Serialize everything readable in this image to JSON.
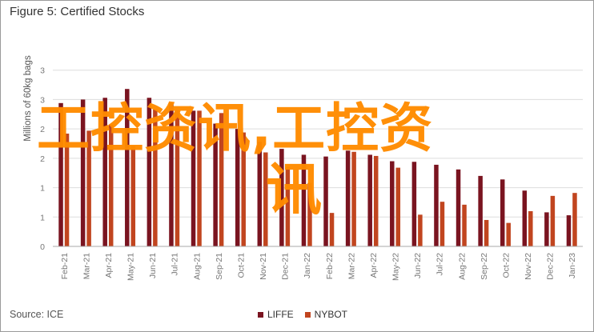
{
  "figure": {
    "title": "Figure 5: Certified Stocks",
    "source": "Source: ICE"
  },
  "watermark": {
    "line1": "工控资讯,工控资",
    "line2": "讯"
  },
  "colors": {
    "LIFFE": "#7a1420",
    "NYBOT": "#c1451f",
    "grid": "#dddddd",
    "axis": "#aaaaaa",
    "watermark": "#ff8c00"
  },
  "chart_data": {
    "type": "bar",
    "title": "Figure 5: Certified Stocks",
    "ylabel": "Millions of 60kg bags",
    "xlabel": "",
    "ylim": [
      0,
      3.5
    ],
    "y_tick_labels": [
      "0",
      "1",
      "1",
      "2",
      "2",
      "3",
      "3"
    ],
    "grid": true,
    "legend_position": "bottom-center",
    "categories": [
      "Feb-21",
      "Mar-21",
      "Apr-21",
      "May-21",
      "Jun-21",
      "Jul-21",
      "Aug-21",
      "Sep-21",
      "Oct-21",
      "Nov-21",
      "Dec-21",
      "Jan-22",
      "Feb-22",
      "Mar-22",
      "Apr-22",
      "May-22",
      "Jun-22",
      "Jul-22",
      "Aug-22",
      "Sep-22",
      "Oct-22",
      "Nov-22",
      "Dec-22",
      "Jan-23"
    ],
    "series": [
      {
        "name": "LIFFE",
        "color": "#7a1420",
        "values": [
          2.44,
          2.5,
          2.53,
          2.68,
          2.53,
          2.44,
          2.31,
          2.09,
          2.0,
          1.78,
          1.66,
          1.56,
          1.53,
          1.63,
          1.56,
          1.45,
          1.44,
          1.39,
          1.31,
          1.2,
          1.14,
          0.95,
          0.58,
          0.53
        ]
      },
      {
        "name": "NYBOT",
        "color": "#c1451f",
        "values": [
          1.92,
          1.97,
          2.07,
          1.71,
          2.33,
          2.32,
          2.31,
          2.27,
          1.94,
          1.6,
          1.35,
          1.08,
          0.57,
          1.61,
          1.54,
          1.34,
          0.54,
          0.76,
          0.71,
          0.45,
          0.4,
          0.6,
          0.86,
          0.91
        ]
      }
    ]
  }
}
